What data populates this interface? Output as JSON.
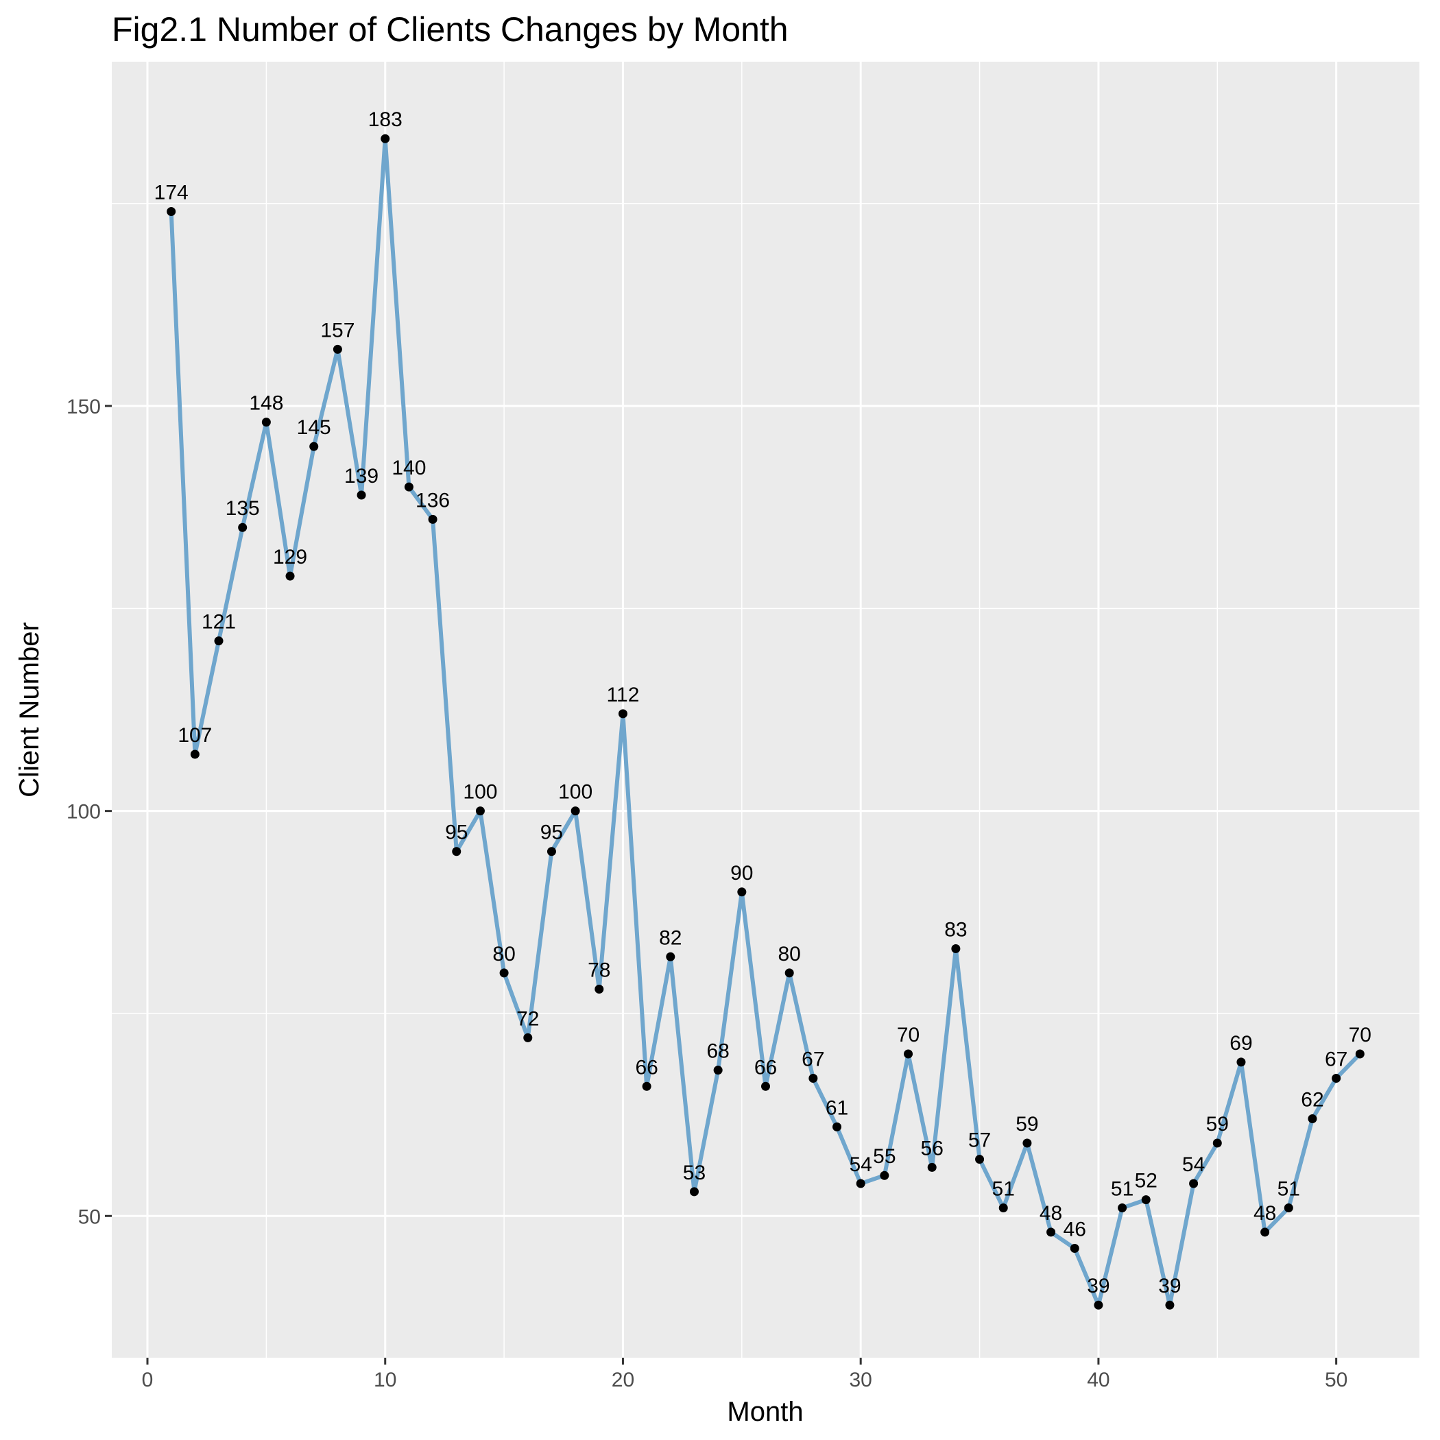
{
  "chart_data": {
    "type": "line",
    "title": "Fig2.1 Number of Clients Changes by Month",
    "xlabel": "Month",
    "ylabel": "Client Number",
    "xlim": [
      -1.5,
      53.5
    ],
    "ylim": [
      32.5,
      192.5
    ],
    "x_ticks": [
      0,
      10,
      20,
      30,
      40,
      50
    ],
    "y_ticks": [
      50,
      100,
      150
    ],
    "grid": true,
    "line_color": "#6fa6cd",
    "point_color": "#000000",
    "panel_background": "#ebebeb",
    "grid_color": "#ffffff",
    "series": [
      {
        "x": [
          1,
          2,
          3,
          4,
          5,
          6,
          7,
          8,
          9,
          10,
          11,
          12,
          13,
          14,
          15,
          16,
          17,
          18,
          19,
          20,
          21,
          22,
          23,
          24,
          25,
          26,
          27,
          28,
          29,
          30,
          31,
          32,
          33,
          34,
          35,
          36,
          37,
          38,
          39,
          40,
          41,
          42,
          43,
          44,
          45,
          46,
          47,
          48,
          49,
          50,
          51
        ],
        "values": [
          174,
          107,
          121,
          135,
          148,
          129,
          145,
          157,
          139,
          183,
          140,
          136,
          95,
          100,
          80,
          72,
          95,
          100,
          78,
          112,
          66,
          82,
          53,
          68,
          90,
          66,
          80,
          67,
          61,
          54,
          55,
          70,
          56,
          83,
          57,
          51,
          59,
          48,
          46,
          39,
          51,
          52,
          39,
          54,
          59,
          69,
          48,
          51,
          62,
          67,
          70
        ]
      }
    ]
  }
}
